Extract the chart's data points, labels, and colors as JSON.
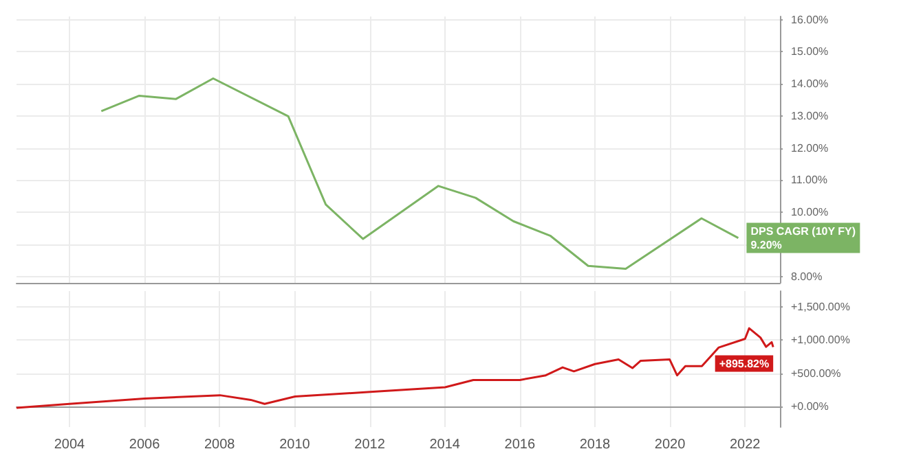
{
  "chart_data": [
    {
      "type": "line",
      "xlim": [
        2002.59,
        2022.93
      ],
      "xticks": [
        2004,
        2006,
        2008,
        2010,
        2012,
        2014,
        2016,
        2018,
        2020,
        2022
      ],
      "ylim": [
        7.8,
        16.1
      ],
      "yticks": [
        {
          "value": 8,
          "label": "8.00%"
        },
        {
          "value": 9,
          "label": null
        },
        {
          "value": 10,
          "label": "10.00%"
        },
        {
          "value": 11,
          "label": "11.00%"
        },
        {
          "value": 12,
          "label": "12.00%"
        },
        {
          "value": 13,
          "label": "13.00%"
        },
        {
          "value": 14,
          "label": "14.00%"
        },
        {
          "value": 15,
          "label": "15.00%"
        },
        {
          "value": 16,
          "label": "16.00%"
        }
      ],
      "tick_labels": "y",
      "grid": true,
      "legend": false,
      "marker": "none",
      "series": [
        {
          "name": "DPS CAGR (10Y FY)",
          "color": "#7cb464",
          "x": [
            2004.85,
            2005.86,
            2006.84,
            2007.83,
            2009.83,
            2010.83,
            2011.82,
            2013.83,
            2014.82,
            2015.83,
            2016.81,
            2017.82,
            2018.82,
            2020.84,
            2021.82
          ],
          "values": [
            13.15,
            13.63,
            13.53,
            14.17,
            12.99,
            10.24,
            9.17,
            10.82,
            10.45,
            9.72,
            9.27,
            8.33,
            8.24,
            9.81,
            9.2
          ],
          "value_labels": [
            null,
            null,
            null,
            null,
            null,
            null,
            null,
            null,
            null,
            null,
            null,
            null,
            null,
            null,
            "9.20%"
          ]
        }
      ]
    },
    {
      "type": "line",
      "xlim": [
        2002.59,
        2022.93
      ],
      "xticks": [
        2004,
        2006,
        2008,
        2010,
        2012,
        2014,
        2016,
        2018,
        2020,
        2022
      ],
      "ylim": [
        -310,
        1740
      ],
      "yticks": [
        {
          "value": 0,
          "label": "+0.00%"
        },
        {
          "value": 500,
          "label": "+500.00%"
        },
        {
          "value": 1000,
          "label": "+1,000.00%"
        },
        {
          "value": 1500,
          "label": "+1,500.00%"
        }
      ],
      "grid": true,
      "legend": false,
      "marker": "none",
      "series": [
        {
          "color": "#d0191a",
          "x": [
            2002.59,
            2004.0,
            2006.0,
            2008.01,
            2008.83,
            2009.2,
            2010.01,
            2012.02,
            2014.01,
            2014.76,
            2016.0,
            2016.69,
            2017.14,
            2017.44,
            2018.0,
            2018.63,
            2019.0,
            2019.22,
            2019.99,
            2020.19,
            2020.41,
            2020.85,
            2021.3,
            2022.0,
            2022.11,
            2022.41,
            2022.56,
            2022.71,
            2022.75
          ],
          "values": [
            -20,
            40,
            120,
            170,
            100,
            40,
            150,
            220,
            290,
            400,
            400,
            470,
            590,
            530,
            640,
            710,
            580,
            690,
            710,
            470,
            610,
            610,
            890,
            1020,
            1180,
            1040,
            900,
            970,
            895.82
          ],
          "value_labels": [
            null,
            null,
            null,
            null,
            null,
            null,
            null,
            null,
            null,
            null,
            null,
            null,
            null,
            null,
            null,
            null,
            null,
            null,
            null,
            null,
            null,
            null,
            null,
            null,
            null,
            null,
            null,
            null,
            "+895.82%"
          ]
        }
      ]
    }
  ]
}
